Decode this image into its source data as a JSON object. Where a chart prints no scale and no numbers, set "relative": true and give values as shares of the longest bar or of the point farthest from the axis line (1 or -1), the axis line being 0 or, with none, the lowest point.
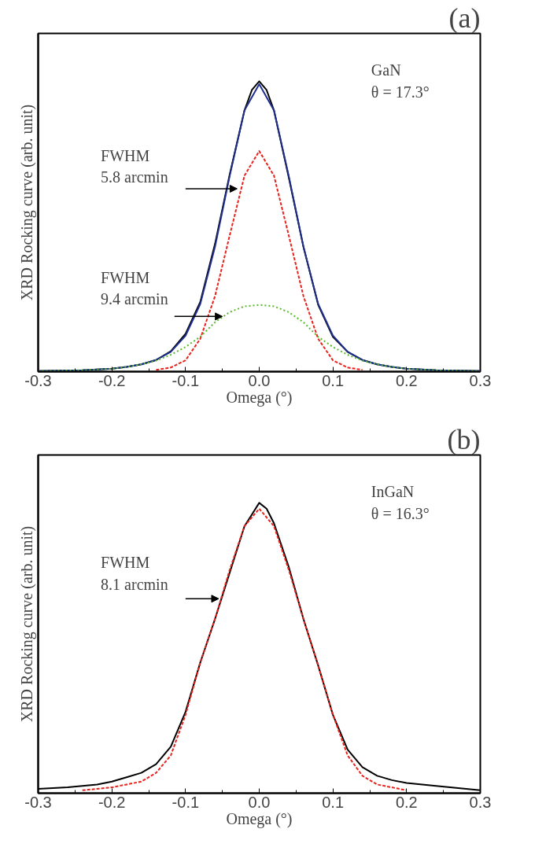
{
  "chart_data": [
    {
      "type": "line",
      "title": "(a)",
      "xlabel": "Omega (°)",
      "ylabel": "XRD Rocking curve (arb. unit)",
      "relative": true,
      "xlim": [
        -0.3,
        0.3
      ],
      "xticks": [
        -0.3,
        -0.2,
        -0.1,
        {
          "value": 0,
          "label": "0.0"
        },
        0.1,
        0.2,
        0.3
      ],
      "grid": false,
      "annotations": [
        "GaN\nθ = 17.3°",
        "FWHM\n5.8 arcmin",
        "FWHM\n9.4 arcmin"
      ],
      "series": [
        {
          "color": "#000000",
          "line_style": "solid",
          "x": [
            -0.3,
            -0.24,
            -0.2,
            -0.18,
            -0.16,
            -0.14,
            -0.12,
            -0.1,
            -0.08,
            -0.06,
            -0.04,
            -0.02,
            -0.01,
            0.0,
            0.01,
            0.02,
            0.04,
            0.06,
            0.08,
            0.1,
            0.12,
            0.14,
            0.16,
            0.18,
            0.2,
            0.24,
            0.3
          ],
          "values": [
            0.002,
            0.005,
            0.01,
            0.016,
            0.025,
            0.04,
            0.07,
            0.13,
            0.24,
            0.44,
            0.68,
            0.9,
            0.97,
            1.0,
            0.97,
            0.9,
            0.67,
            0.43,
            0.23,
            0.12,
            0.068,
            0.04,
            0.025,
            0.016,
            0.01,
            0.005,
            0.002
          ]
        },
        {
          "color": "#1f2f8f",
          "line_style": "solid",
          "x": [
            -0.3,
            -0.24,
            -0.2,
            -0.18,
            -0.16,
            -0.14,
            -0.12,
            -0.1,
            -0.08,
            -0.06,
            -0.04,
            -0.02,
            0.0,
            0.02,
            0.04,
            0.06,
            0.08,
            0.1,
            0.12,
            0.14,
            0.16,
            0.18,
            0.2,
            0.24,
            0.3
          ],
          "values": [
            0.002,
            0.005,
            0.01,
            0.016,
            0.025,
            0.04,
            0.068,
            0.124,
            0.233,
            0.43,
            0.675,
            0.9,
            0.99,
            0.9,
            0.675,
            0.43,
            0.233,
            0.124,
            0.068,
            0.04,
            0.025,
            0.016,
            0.01,
            0.005,
            0.002
          ]
        },
        {
          "color": "#e8231e",
          "line_style": "dashed",
          "x": [
            -0.14,
            -0.12,
            -0.1,
            -0.08,
            -0.06,
            -0.04,
            -0.02,
            0.0,
            0.02,
            0.04,
            0.06,
            0.08,
            0.1,
            0.12,
            0.14
          ],
          "values": [
            0.006,
            0.014,
            0.039,
            0.113,
            0.26,
            0.47,
            0.675,
            0.76,
            0.675,
            0.47,
            0.26,
            0.113,
            0.039,
            0.014,
            0.006
          ]
        },
        {
          "color": "#58b82a",
          "line_style": "dotted",
          "x": [
            -0.3,
            -0.24,
            -0.2,
            -0.18,
            -0.16,
            -0.14,
            -0.12,
            -0.1,
            -0.08,
            -0.06,
            -0.04,
            -0.02,
            0.0,
            0.02,
            0.04,
            0.06,
            0.08,
            0.1,
            0.12,
            0.14,
            0.16,
            0.18,
            0.2,
            0.24,
            0.3
          ],
          "values": [
            0.002,
            0.005,
            0.01,
            0.016,
            0.025,
            0.038,
            0.058,
            0.085,
            0.12,
            0.17,
            0.205,
            0.225,
            0.23,
            0.225,
            0.205,
            0.17,
            0.12,
            0.085,
            0.058,
            0.038,
            0.025,
            0.016,
            0.01,
            0.005,
            0.002
          ]
        }
      ]
    },
    {
      "type": "line",
      "title": "(b)",
      "xlabel": "Omega (°)",
      "ylabel": "XRD Rocking curve (arb. unit)",
      "relative": true,
      "xlim": [
        -0.3,
        0.3
      ],
      "xticks": [
        -0.3,
        -0.2,
        -0.1,
        {
          "value": 0,
          "label": "0.0"
        },
        0.1,
        0.2,
        0.3
      ],
      "grid": false,
      "annotations": [
        "InGaN\nθ = 16.3°",
        "FWHM\n8.1 arcmin"
      ],
      "series": [
        {
          "color": "#000000",
          "line_style": "solid",
          "x": [
            -0.3,
            -0.26,
            -0.22,
            -0.2,
            -0.18,
            -0.16,
            -0.14,
            -0.12,
            -0.1,
            -0.08,
            -0.06,
            -0.04,
            -0.02,
            -0.01,
            0.0,
            0.01,
            0.02,
            0.04,
            0.06,
            0.08,
            0.1,
            0.12,
            0.14,
            0.16,
            0.18,
            0.2,
            0.24,
            0.3
          ],
          "values": [
            0.015,
            0.02,
            0.03,
            0.04,
            0.055,
            0.07,
            0.1,
            0.16,
            0.28,
            0.45,
            0.6,
            0.76,
            0.92,
            0.96,
            1.0,
            0.98,
            0.93,
            0.78,
            0.6,
            0.44,
            0.27,
            0.15,
            0.09,
            0.06,
            0.045,
            0.035,
            0.025,
            0.01
          ]
        },
        {
          "color": "#e8231e",
          "line_style": "dashed",
          "x": [
            -0.24,
            -0.2,
            -0.16,
            -0.14,
            -0.12,
            -0.1,
            -0.08,
            -0.06,
            -0.04,
            -0.02,
            0.0,
            0.02,
            0.04,
            0.06,
            0.08,
            0.1,
            0.12,
            0.14,
            0.16,
            0.2
          ],
          "values": [
            0.01,
            0.02,
            0.04,
            0.07,
            0.13,
            0.27,
            0.45,
            0.6,
            0.77,
            0.92,
            0.98,
            0.92,
            0.77,
            0.6,
            0.44,
            0.27,
            0.13,
            0.06,
            0.03,
            0.01
          ]
        }
      ]
    }
  ]
}
